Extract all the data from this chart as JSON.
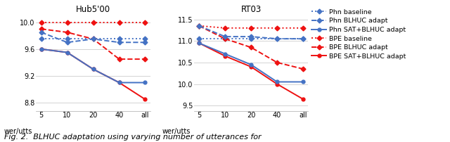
{
  "x_labels": [
    "5",
    "10",
    "20",
    "40",
    "all"
  ],
  "x_values": [
    0,
    1,
    2,
    3,
    4
  ],
  "hub500": {
    "phn_baseline": [
      9.75,
      9.75,
      9.75,
      9.75,
      9.75
    ],
    "phn_blhuc": [
      9.85,
      9.7,
      9.75,
      9.7,
      9.7
    ],
    "phn_sat_blhuc": [
      9.6,
      9.55,
      9.3,
      9.1,
      9.1
    ],
    "bpe_baseline": [
      10.0,
      10.0,
      10.0,
      10.0,
      10.0
    ],
    "bpe_blhuc": [
      9.9,
      9.85,
      9.75,
      9.45,
      9.45
    ],
    "bpe_sat_blhuc": [
      9.6,
      9.55,
      9.3,
      9.1,
      8.85
    ]
  },
  "rt03": {
    "phn_baseline": [
      11.05,
      11.05,
      11.05,
      11.05,
      11.05
    ],
    "phn_blhuc": [
      11.35,
      11.1,
      11.1,
      11.05,
      11.05
    ],
    "phn_sat_blhuc": [
      10.95,
      10.7,
      10.45,
      10.05,
      10.05
    ],
    "bpe_baseline": [
      11.35,
      11.3,
      11.3,
      11.3,
      11.3
    ],
    "bpe_blhuc": [
      11.35,
      11.05,
      10.85,
      10.5,
      10.35
    ],
    "bpe_sat_blhuc": [
      10.95,
      10.65,
      10.4,
      10.0,
      9.65
    ]
  },
  "hub500_title": "Hub5'00",
  "rt03_title": "RT03",
  "xlabel": "wer/utts",
  "hub500_ylim": [
    8.68,
    10.12
  ],
  "hub500_yticks": [
    8.8,
    9.2,
    9.6,
    10.0
  ],
  "rt03_ylim": [
    9.38,
    11.62
  ],
  "rt03_yticks": [
    9.5,
    10.0,
    10.5,
    11.0,
    11.5
  ],
  "legend_labels": [
    "Phn baseline",
    "Phn BLHUC adapt",
    "Phn SAT+BLHUC adapt",
    "BPE baseline",
    "BPE BLHUC adapt",
    "BPE SAT+BLHUC adapt"
  ],
  "blue": "#4472C4",
  "red": "#EE1111",
  "background": "#FFFFFF",
  "caption": "Fig. 2.  BLHUC adaptation using varying number of utterances for"
}
